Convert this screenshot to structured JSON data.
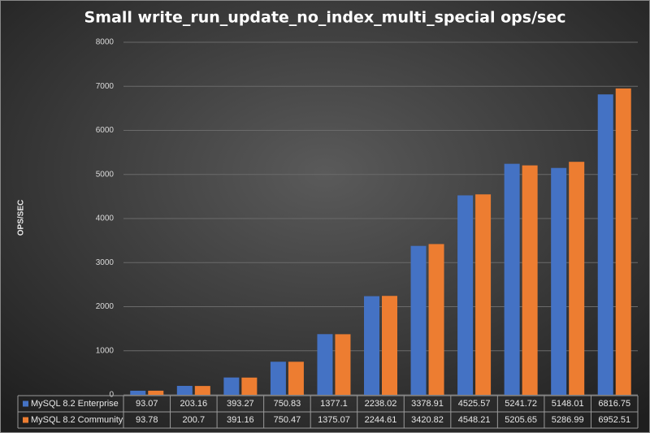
{
  "chart_data": {
    "type": "bar",
    "title": "Small  write_run_update_no_index_multi_special   ops/sec",
    "y_label": "OPS/SEC",
    "ylim": [
      0,
      8000
    ],
    "yticks": [
      0,
      1000,
      2000,
      3000,
      4000,
      5000,
      6000,
      7000,
      8000
    ],
    "grid": true,
    "series": [
      {
        "name": "MySQL 8.2 Enterprise",
        "color": "#4472c4",
        "values": [
          93.07,
          203.16,
          393.27,
          750.83,
          1377.1,
          2238.02,
          3378.91,
          4525.57,
          5241.72,
          5148.01,
          6816.75
        ]
      },
      {
        "name": "MySQL 8.2 Community",
        "color": "#ed7d31",
        "values": [
          93.78,
          200.7,
          391.16,
          750.47,
          1375.07,
          2244.61,
          3420.82,
          4548.21,
          5205.65,
          5286.99,
          6952.51
        ]
      }
    ]
  }
}
